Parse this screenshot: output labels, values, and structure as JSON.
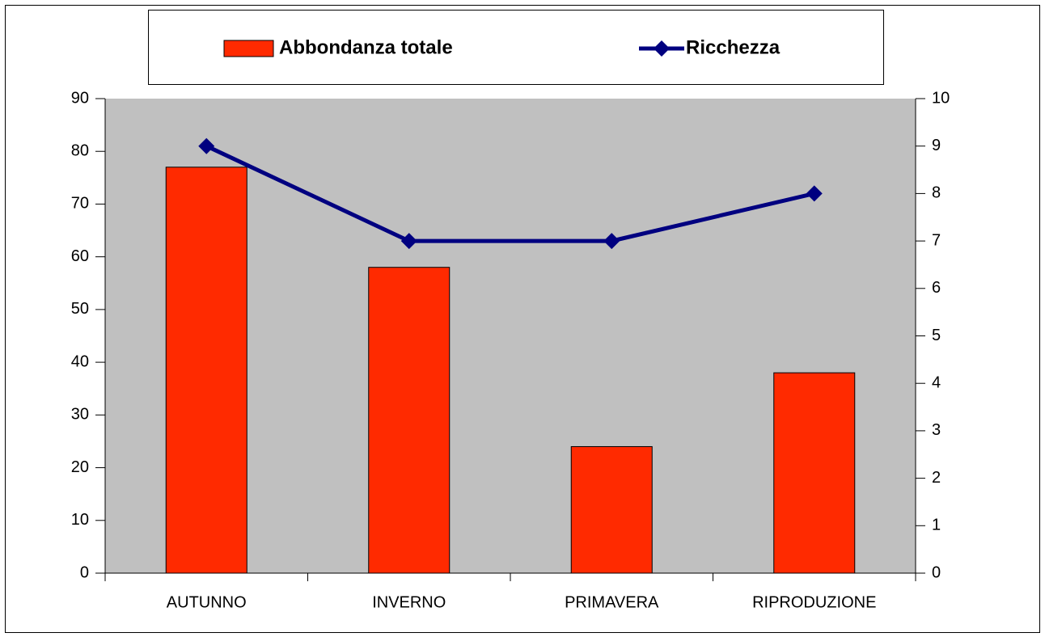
{
  "chart_data": {
    "type": "bar",
    "categories": [
      "AUTUNNO",
      "INVERNO",
      "PRIMAVERA",
      "RIPRODUZIONE"
    ],
    "series": [
      {
        "name": "Abbondanza totale",
        "type": "bar",
        "color": "#ff2a00",
        "values": [
          77,
          58,
          24,
          38
        ]
      },
      {
        "name": "Ricchezza",
        "type": "line",
        "color": "#000080",
        "axis": "y2",
        "values": [
          9,
          7,
          7,
          8
        ]
      }
    ],
    "ylim": [
      0,
      90
    ],
    "yticks": [
      0,
      10,
      20,
      30,
      40,
      50,
      60,
      70,
      80,
      90
    ],
    "y2lim": [
      0,
      10
    ],
    "y2ticks": [
      0,
      1,
      2,
      3,
      4,
      5,
      6,
      7,
      8,
      9,
      10
    ],
    "grid": false,
    "legend": "top",
    "plot_background": "#c0c0c0"
  }
}
